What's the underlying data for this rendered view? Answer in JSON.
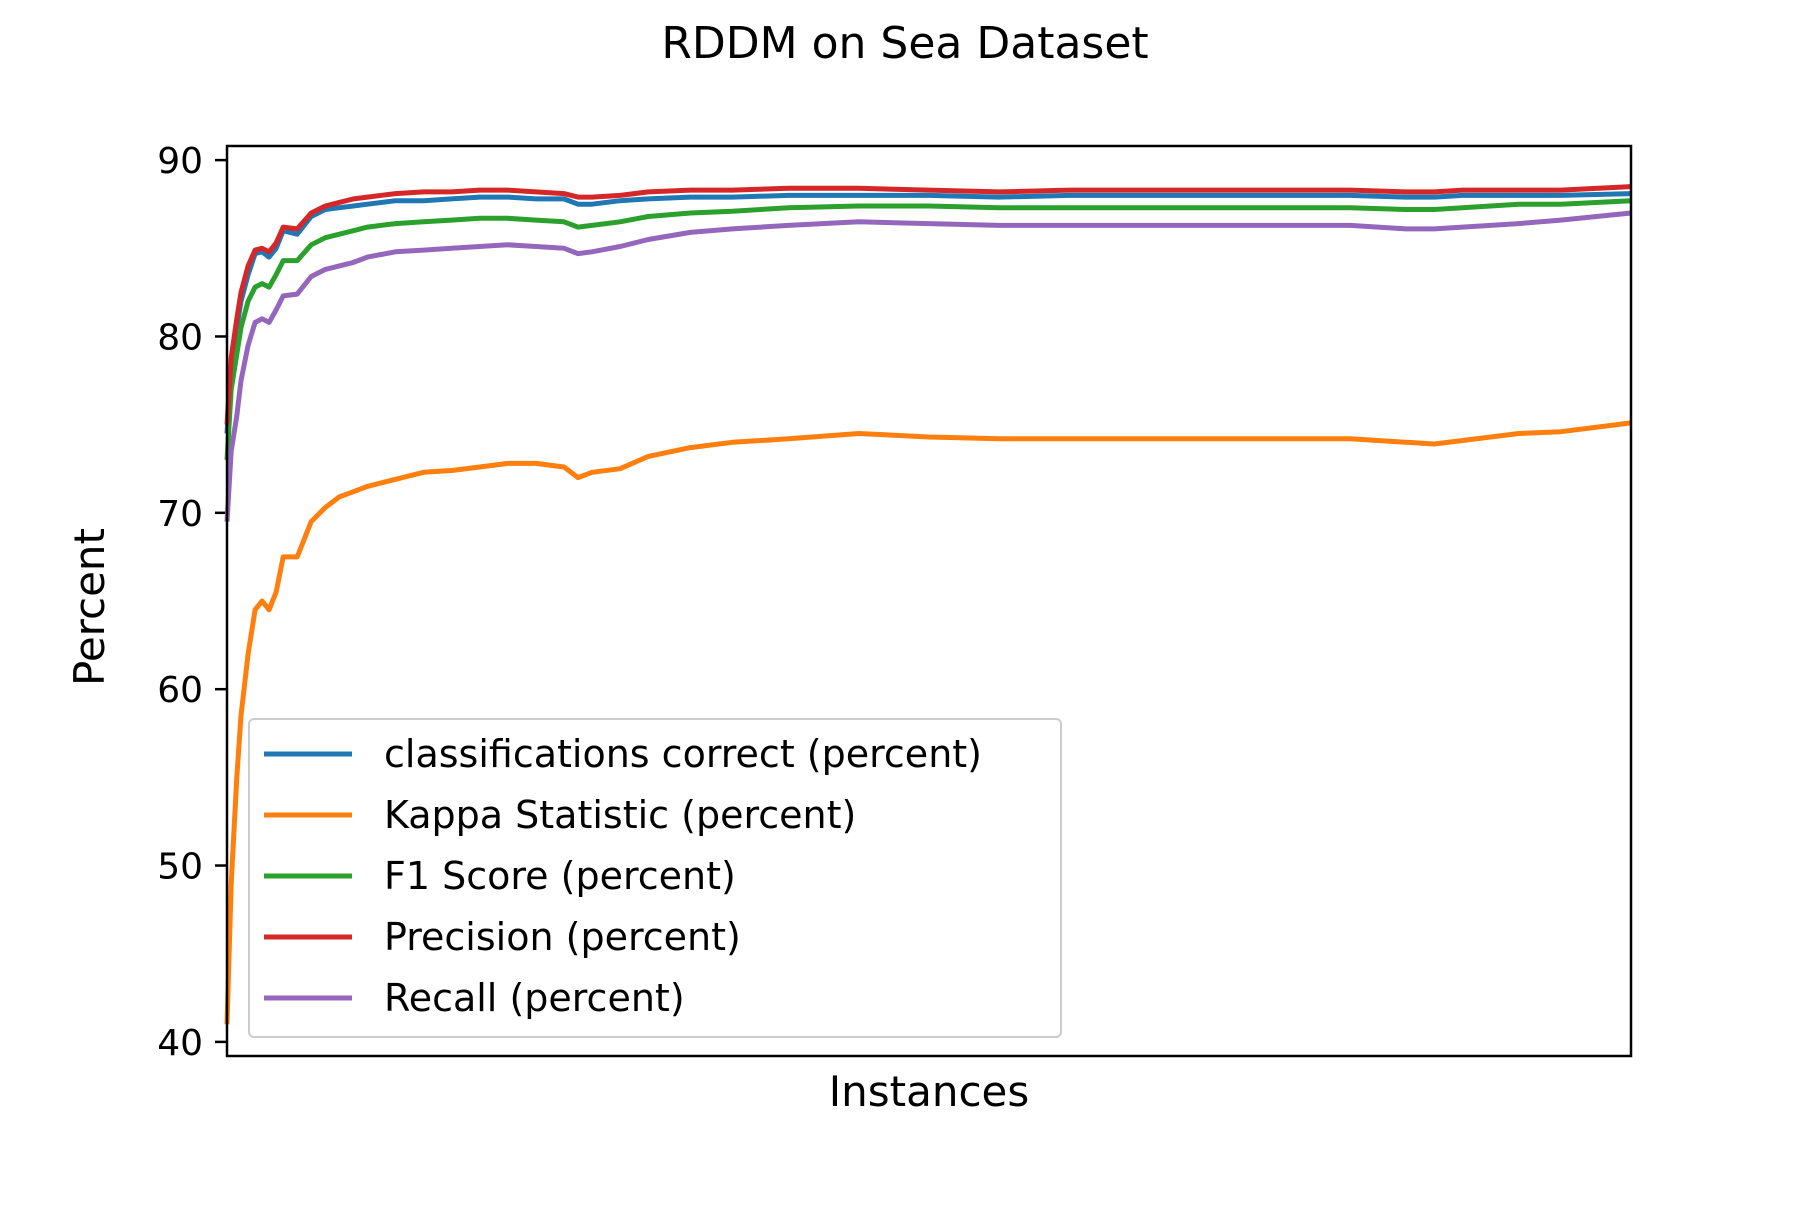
{
  "chart_data": {
    "type": "line",
    "title": "RDDM on Sea Dataset",
    "xlabel": "Instances",
    "ylabel": "Percent",
    "ylim": [
      39.2,
      90.8
    ],
    "xlim": [
      0,
      100
    ],
    "y_ticks": [
      90,
      80,
      70,
      60,
      50,
      40
    ],
    "x_ticks": [],
    "grid": false,
    "legend_position": "lower-left",
    "x": [
      0,
      0.3,
      0.7,
      1,
      1.5,
      2,
      2.5,
      3,
      3.5,
      4,
      5,
      6,
      7,
      8,
      9,
      10,
      12,
      14,
      16,
      18,
      20,
      22,
      24,
      25,
      26,
      28,
      30,
      33,
      36,
      40,
      45,
      50,
      55,
      60,
      65,
      70,
      75,
      80,
      84,
      86,
      88,
      90,
      92,
      95,
      100
    ],
    "series": [
      {
        "name": "classifications correct (percent)",
        "color": "#1f77b4",
        "values": [
          74.5,
          78.5,
          80.5,
          82,
          83.5,
          84.7,
          84.8,
          84.5,
          85,
          86,
          85.8,
          86.8,
          87.2,
          87.3,
          87.4,
          87.5,
          87.7,
          87.7,
          87.8,
          87.9,
          87.9,
          87.8,
          87.8,
          87.5,
          87.5,
          87.7,
          87.8,
          87.9,
          87.9,
          88.0,
          88.0,
          88.0,
          87.9,
          88.0,
          88.0,
          88.0,
          88.0,
          88.0,
          87.9,
          87.9,
          88.0,
          88.0,
          88.0,
          88.0,
          88.1
        ]
      },
      {
        "name": "Kappa Statistic (percent)",
        "color": "#ff7f0e",
        "values": [
          41,
          49,
          55,
          58.5,
          62,
          64.5,
          65,
          64.5,
          65.5,
          67.5,
          67.5,
          69.5,
          70.3,
          70.9,
          71.2,
          71.5,
          71.9,
          72.3,
          72.4,
          72.6,
          72.8,
          72.8,
          72.6,
          72.0,
          72.3,
          72.5,
          73.2,
          73.7,
          74.0,
          74.2,
          74.5,
          74.3,
          74.2,
          74.2,
          74.2,
          74.2,
          74.2,
          74.2,
          74.0,
          73.9,
          74.1,
          74.3,
          74.5,
          74.6,
          75.1
        ]
      },
      {
        "name": "F1 Score (percent)",
        "color": "#2ca02c",
        "values": [
          73,
          77,
          79,
          80.5,
          82,
          82.8,
          83,
          82.8,
          83.5,
          84.3,
          84.3,
          85.2,
          85.6,
          85.8,
          86.0,
          86.2,
          86.4,
          86.5,
          86.6,
          86.7,
          86.7,
          86.6,
          86.5,
          86.2,
          86.3,
          86.5,
          86.8,
          87.0,
          87.1,
          87.3,
          87.4,
          87.4,
          87.3,
          87.3,
          87.3,
          87.3,
          87.3,
          87.3,
          87.2,
          87.2,
          87.3,
          87.4,
          87.5,
          87.5,
          87.7
        ]
      },
      {
        "name": "Precision (percent)",
        "color": "#d62728",
        "values": [
          75,
          78.8,
          81,
          82.5,
          84,
          84.9,
          85,
          84.8,
          85.3,
          86.2,
          86.1,
          87.0,
          87.4,
          87.6,
          87.8,
          87.9,
          88.1,
          88.2,
          88.2,
          88.3,
          88.3,
          88.2,
          88.1,
          87.9,
          87.9,
          88.0,
          88.2,
          88.3,
          88.3,
          88.4,
          88.4,
          88.3,
          88.2,
          88.3,
          88.3,
          88.3,
          88.3,
          88.3,
          88.2,
          88.2,
          88.3,
          88.3,
          88.3,
          88.3,
          88.5
        ]
      },
      {
        "name": "Recall (percent)",
        "color": "#9467bd",
        "values": [
          69.5,
          73.5,
          75.5,
          77.5,
          79.5,
          80.8,
          81,
          80.8,
          81.5,
          82.3,
          82.4,
          83.4,
          83.8,
          84.0,
          84.2,
          84.5,
          84.8,
          84.9,
          85.0,
          85.1,
          85.2,
          85.1,
          85.0,
          84.7,
          84.8,
          85.1,
          85.5,
          85.9,
          86.1,
          86.3,
          86.5,
          86.4,
          86.3,
          86.3,
          86.3,
          86.3,
          86.3,
          86.3,
          86.1,
          86.1,
          86.2,
          86.3,
          86.4,
          86.6,
          87.0
        ]
      }
    ]
  }
}
